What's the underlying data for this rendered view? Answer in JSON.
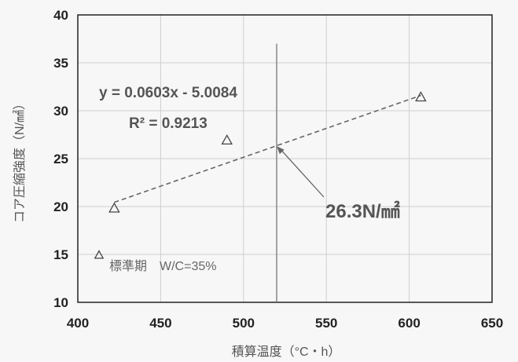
{
  "chart_data": {
    "type": "scatter",
    "title": "",
    "xlabel": "積算温度（°C・h）",
    "ylabel": "コア圧縮強度（N/㎟）",
    "xlim": [
      400,
      650
    ],
    "ylim": [
      10,
      40
    ],
    "xticks": [
      400,
      450,
      500,
      550,
      600,
      650
    ],
    "yticks": [
      10,
      15,
      20,
      25,
      30,
      35,
      40
    ],
    "grid": true,
    "series": [
      {
        "marker": "triangle-open",
        "points": [
          {
            "x": 422,
            "y": 19.8
          },
          {
            "x": 490,
            "y": 26.9
          },
          {
            "x": 607,
            "y": 31.4
          }
        ]
      }
    ],
    "legend_note": {
      "marker": "triangle-open",
      "label": "標準期　W/C=35%"
    },
    "trendline": {
      "type": "linear",
      "slope": 0.0603,
      "intercept": -5.0084,
      "x_range": [
        422,
        607
      ],
      "equation": "y = 0.0603x - 5.0084",
      "r2": "R² = 0.9213"
    },
    "reference_line": {
      "x": 520
    },
    "annotation": {
      "text": "26.3N/㎟",
      "point": {
        "x": 520,
        "y": 26.3
      }
    }
  }
}
